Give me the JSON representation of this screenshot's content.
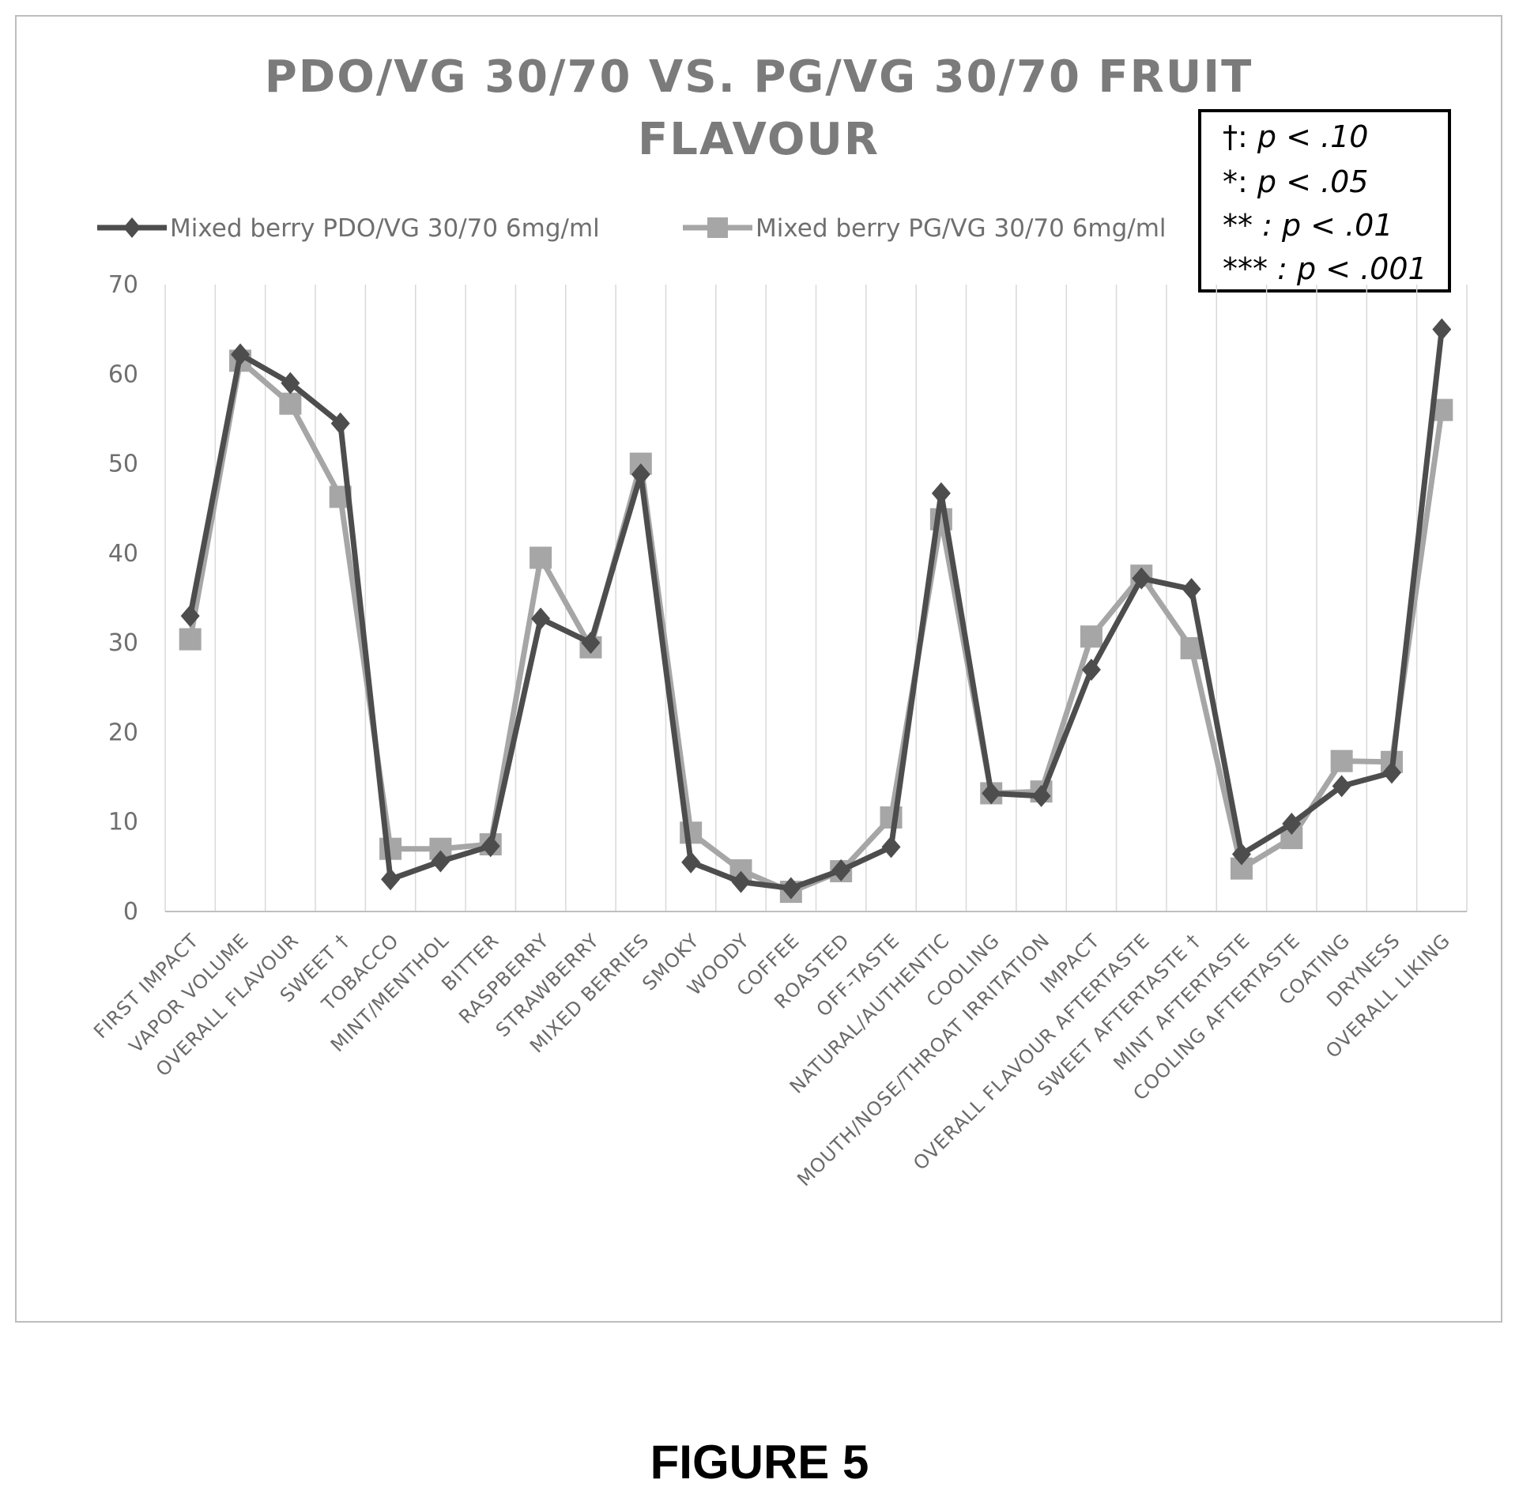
{
  "chart_data": {
    "type": "line",
    "title_lines": [
      "PDO/VG 30/70 VS. PG/VG 30/70 FRUIT",
      "FLAVOUR"
    ],
    "ylim": [
      0,
      70
    ],
    "yticks": [
      0,
      10,
      20,
      30,
      40,
      50,
      60,
      70
    ],
    "grid": "vertical",
    "legend_position": "top",
    "categories": [
      "FIRST IMPACT",
      "VAPOR VOLUME",
      "OVERALL FLAVOUR",
      "SWEET †",
      "TOBACCO",
      "MINT/MENTHOL",
      "BITTER",
      "RASPBERRY",
      "STRAWBERRY",
      "MIXED BERRIES",
      "SMOKY",
      "WOODY",
      "COFFEE",
      "ROASTED",
      "OFF-TASTE",
      "NATURAL/AUTHENTIC",
      "COOLING",
      "MOUTH/NOSE/THROAT IRRITATION",
      "IMPACT",
      "OVERALL FLAVOUR AFTERTASTE",
      "SWEET AFTERTASTE †",
      "MINT AFTERTASTE",
      "COOLING AFTERTASTE",
      "COATING",
      "DRYNESS",
      "OVERALL LIKING"
    ],
    "series": [
      {
        "name": "Mixed berry PDO/VG 30/70  6mg/ml",
        "color": "#4d4d4d",
        "marker": "diamond",
        "values": [
          33,
          62.2,
          59,
          54.5,
          3.6,
          5.6,
          7.3,
          32.7,
          30,
          48.8,
          5.5,
          3.3,
          2.6,
          4.6,
          7.2,
          46.7,
          13.2,
          12.9,
          27,
          37.2,
          36,
          6.4,
          9.8,
          14,
          15.5,
          65
        ]
      },
      {
        "name": "Mixed berry PG/VG 30/70  6mg/ml",
        "color": "#a6a6a6",
        "marker": "square",
        "values": [
          30.4,
          61.5,
          56.7,
          46.3,
          7,
          7,
          7.5,
          39.5,
          29.5,
          50,
          8.8,
          4.6,
          2.2,
          4.5,
          10.5,
          43.8,
          13.2,
          13.4,
          30.7,
          37.5,
          29.4,
          4.8,
          8.2,
          16.8,
          16.7,
          56
        ]
      }
    ]
  },
  "significance_box": {
    "lines": [
      {
        "key": "†: ",
        "value": "p < .10"
      },
      {
        "key": "*: ",
        "value": "p < .05"
      },
      {
        "key": "** : ",
        "value": "p < .01"
      },
      {
        "key": "*** : ",
        "value": "p < .001"
      }
    ]
  },
  "figure_label": "FIGURE 5"
}
